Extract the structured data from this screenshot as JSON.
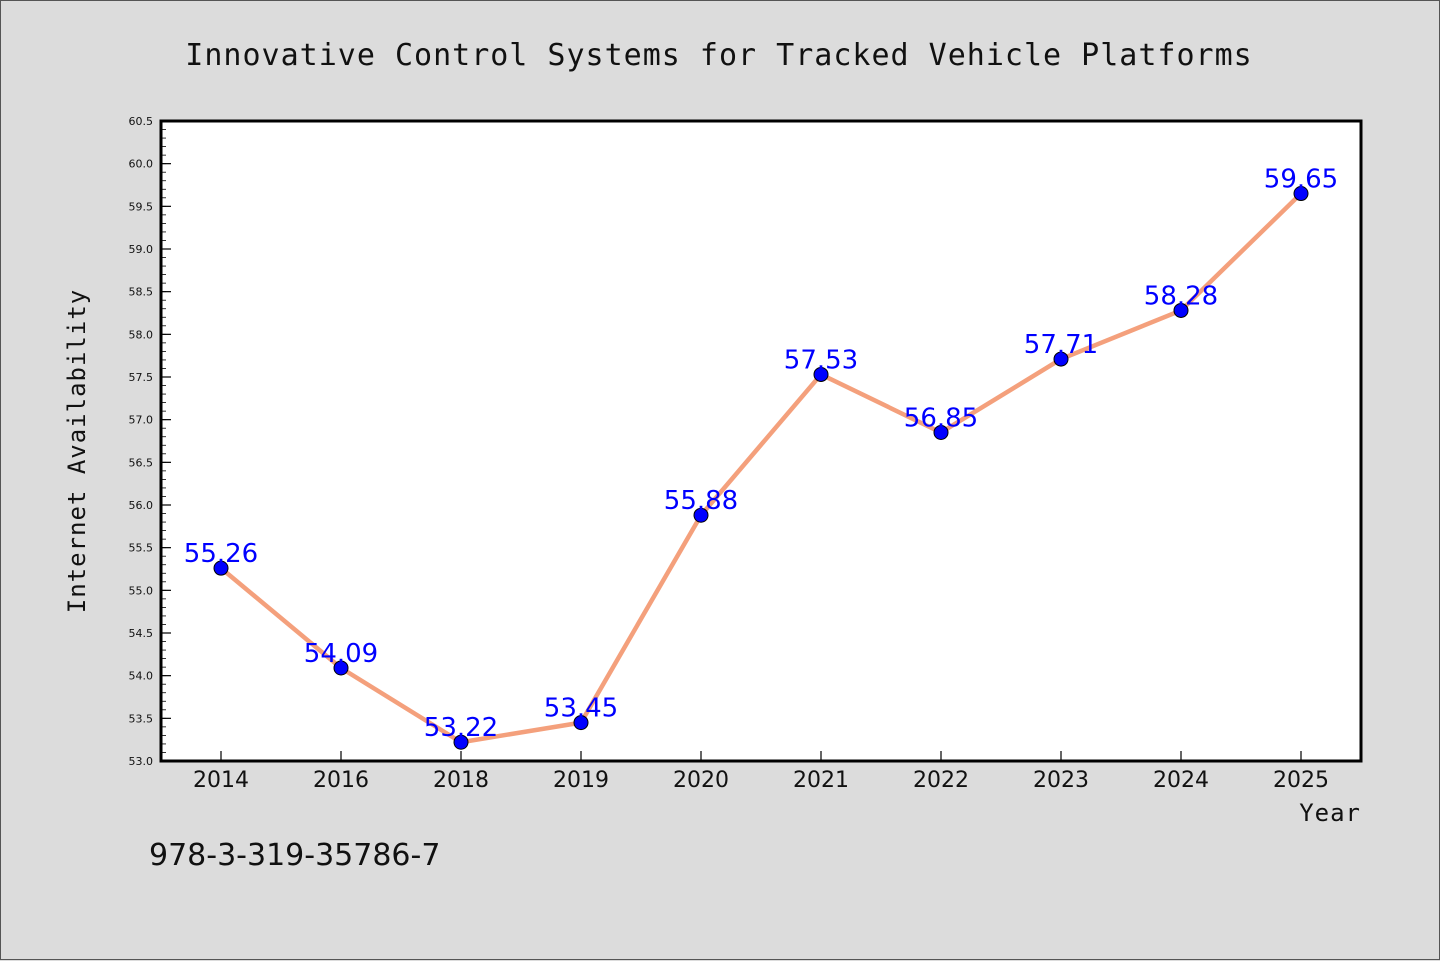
{
  "chart_data": {
    "type": "line",
    "title": "Innovative Control Systems for Tracked Vehicle Platforms",
    "xlabel": "Year",
    "ylabel": "Internet Availability",
    "categories": [
      "2014",
      "2016",
      "2018",
      "2019",
      "2020",
      "2021",
      "2022",
      "2023",
      "2024",
      "2025"
    ],
    "series": [
      {
        "values": [
          55.26,
          54.09,
          53.22,
          53.45,
          55.88,
          57.53,
          56.85,
          57.71,
          58.28,
          59.65
        ],
        "data_labels": [
          "55.26",
          "54.09",
          "53.22",
          "53.45",
          "55.88",
          "57.53",
          "56.85",
          "57.71",
          "58.28",
          "59.65"
        ],
        "line_color": "#f4a07c",
        "marker_color": "#0000ff",
        "label_color": "#0000ff"
      }
    ],
    "ylim": [
      53.0,
      60.5
    ],
    "y_ticks": [
      "53.0",
      "53.5",
      "54.0",
      "54.5",
      "55.0",
      "55.5",
      "56.0",
      "56.5",
      "57.0",
      "57.5",
      "58.0",
      "58.5",
      "59.0",
      "59.5",
      "60.0",
      "60.5"
    ],
    "grid": false,
    "legend": "none"
  },
  "footer": {
    "isbn": "978-3-319-35786-7"
  },
  "colors": {
    "background": "#dcdcdc",
    "plot_background": "#ffffff",
    "line": "#f4a07c",
    "marker": "#0000ff",
    "data_label": "#0000ff"
  }
}
